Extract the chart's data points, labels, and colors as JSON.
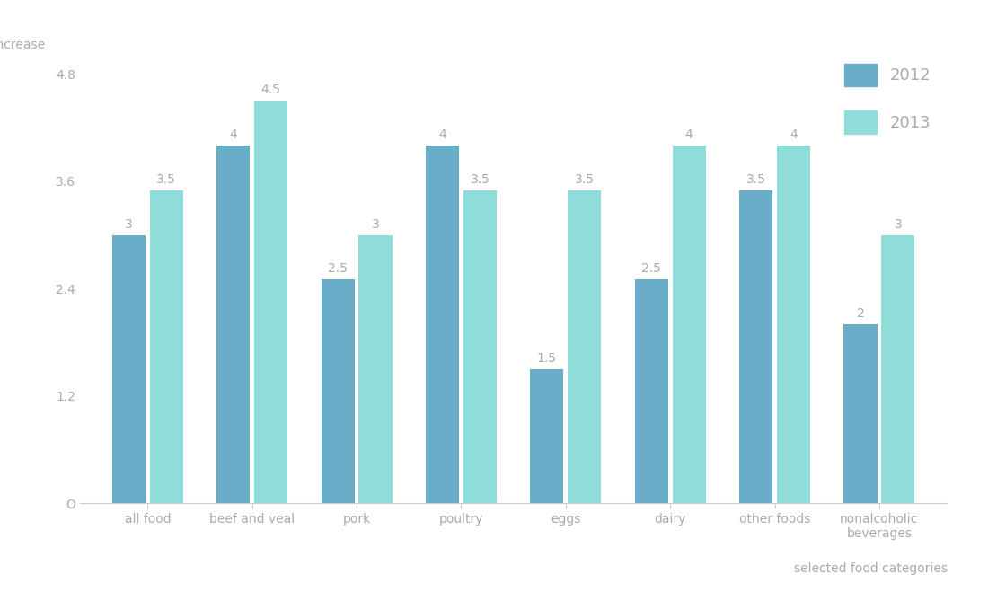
{
  "categories": [
    "all food",
    "beef and veal",
    "pork",
    "poultry",
    "eggs",
    "dairy",
    "other foods",
    "nonalcoholic\nbeverages"
  ],
  "values_2012": [
    3.0,
    4.0,
    2.5,
    4.0,
    1.5,
    2.5,
    3.5,
    2.0
  ],
  "values_2013": [
    3.5,
    4.5,
    3.0,
    3.5,
    3.5,
    4.0,
    4.0,
    3.0
  ],
  "color_2012": "#6aadc8",
  "color_2013": "#8eddd8",
  "bar_label_color": "#aaaaaa",
  "bar_label_fontsize": 10,
  "xlabel": "selected food categories",
  "legend_labels": [
    "2012",
    "2013"
  ],
  "ylim": [
    0,
    5.1
  ],
  "yticks": [
    0,
    1.2,
    2.4,
    3.6,
    4.8
  ],
  "ytick_labels": [
    "O",
    "1.2",
    "2.4",
    "3.6",
    "4.8"
  ],
  "background_color": "#ffffff",
  "figsize": [
    11.1,
    6.59
  ],
  "dpi": 100,
  "bar_width": 0.32,
  "bar_gap": 0.04
}
